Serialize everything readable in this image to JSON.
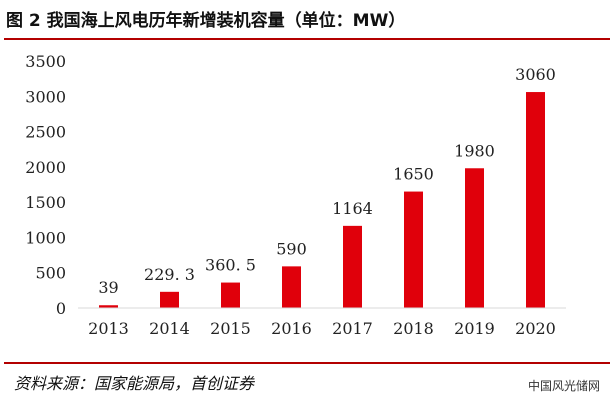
{
  "figure": {
    "title": "图 2  我国海上风电历年新增装机容量（单位：MW）",
    "source": "资料来源：国家能源局，首创证券",
    "watermark": "中国风光储网"
  },
  "colors": {
    "bar": "#e0000b",
    "accent_rule": "#b30000",
    "text": "#222222"
  },
  "chart_data": {
    "type": "bar",
    "title": "我国海上风电历年新增装机容量（单位：MW）",
    "xlabel": "",
    "ylabel": "",
    "categories": [
      "2013",
      "2014",
      "2015",
      "2016",
      "2017",
      "2018",
      "2019",
      "2020"
    ],
    "values": [
      39,
      229.3,
      360.5,
      590,
      1164,
      1650,
      1980,
      3060
    ],
    "data_labels": [
      "39",
      "229. 3",
      "360. 5",
      "590",
      "1164",
      "1650",
      "1980",
      "3060"
    ],
    "ylim": [
      0,
      3500
    ],
    "yticks": [
      0,
      500,
      1000,
      1500,
      2000,
      2500,
      3000,
      3500
    ],
    "grid": false,
    "legend": "none"
  }
}
